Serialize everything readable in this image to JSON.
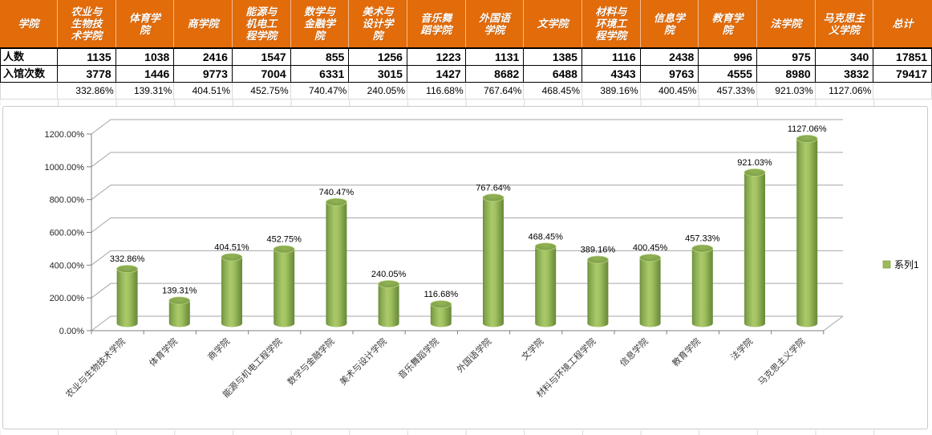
{
  "table": {
    "corner_label": "学院",
    "row1_label": "人数",
    "row2_label": "入馆次数",
    "columns": [
      {
        "header": "农业与\n生物技\n术学院",
        "renshu": "1135",
        "ruguan": "3778",
        "pct": "332.86%"
      },
      {
        "header": "体育学\n院",
        "renshu": "1038",
        "ruguan": "1446",
        "pct": "139.31%"
      },
      {
        "header": "商学院",
        "renshu": "2416",
        "ruguan": "9773",
        "pct": "404.51%"
      },
      {
        "header": "能源与\n机电工\n程学院",
        "renshu": "1547",
        "ruguan": "7004",
        "pct": "452.75%"
      },
      {
        "header": "数学与\n金融学\n院",
        "renshu": "855",
        "ruguan": "6331",
        "pct": "740.47%"
      },
      {
        "header": "美术与\n设计学\n院",
        "renshu": "1256",
        "ruguan": "3015",
        "pct": "240.05%"
      },
      {
        "header": "音乐舞\n蹈学院",
        "renshu": "1223",
        "ruguan": "1427",
        "pct": "116.68%"
      },
      {
        "header": "外国语\n学院",
        "renshu": "1131",
        "ruguan": "8682",
        "pct": "767.64%"
      },
      {
        "header": "文学院",
        "renshu": "1385",
        "ruguan": "6488",
        "pct": "468.45%"
      },
      {
        "header": "材料与\n环境工\n程学院",
        "renshu": "1116",
        "ruguan": "4343",
        "pct": "389.16%"
      },
      {
        "header": "信息学\n院",
        "renshu": "2438",
        "ruguan": "9763",
        "pct": "400.45%"
      },
      {
        "header": "教育学\n院",
        "renshu": "996",
        "ruguan": "4555",
        "pct": "457.33%"
      },
      {
        "header": "法学院",
        "renshu": "975",
        "ruguan": "8980",
        "pct": "921.03%"
      },
      {
        "header": "马克思主\n义学院",
        "renshu": "340",
        "ruguan": "3832",
        "pct": "1127.06%"
      },
      {
        "header": "总计",
        "renshu": "17851",
        "ruguan": "79417",
        "pct": ""
      }
    ]
  },
  "chart_data": {
    "type": "bar",
    "style": "3d-cylinder",
    "title": "",
    "categories": [
      "农业与生物技术学院",
      "体育学院",
      "商学院",
      "能源与机电工程学院",
      "数学与金融学院",
      "美术与设计学院",
      "音乐舞蹈学院",
      "外国语学院",
      "文学院",
      "材料与环境工程学院",
      "信息学院",
      "教育学院",
      "法学院",
      "马克思主义学院"
    ],
    "series": [
      {
        "name": "系列1",
        "values": [
          332.86,
          139.31,
          404.51,
          452.75,
          740.47,
          240.05,
          116.68,
          767.64,
          468.45,
          389.16,
          400.45,
          457.33,
          921.03,
          1127.06
        ]
      }
    ],
    "value_labels": [
      "332.86%",
      "139.31%",
      "404.51%",
      "452.75%",
      "740.47%",
      "240.05%",
      "116.68%",
      "767.64%",
      "468.45%",
      "389.16%",
      "400.45%",
      "457.33%",
      "921.03%",
      "1127.06%"
    ],
    "ylim": [
      0,
      1200
    ],
    "ytick_step": 200,
    "ytick_labels": [
      "0.00%",
      "200.00%",
      "400.00%",
      "600.00%",
      "800.00%",
      "1000.00%",
      "1200.00%"
    ],
    "legend": {
      "label": "系列1",
      "position": "right"
    },
    "grid": true,
    "bar_color": "#9bbb59"
  },
  "colors": {
    "header_bg": "#e26b0a",
    "header_text": "#ffffff",
    "bar_green": "#9bbb59",
    "gridline": "#a6a6a6",
    "axis": "#7f7f7f"
  }
}
